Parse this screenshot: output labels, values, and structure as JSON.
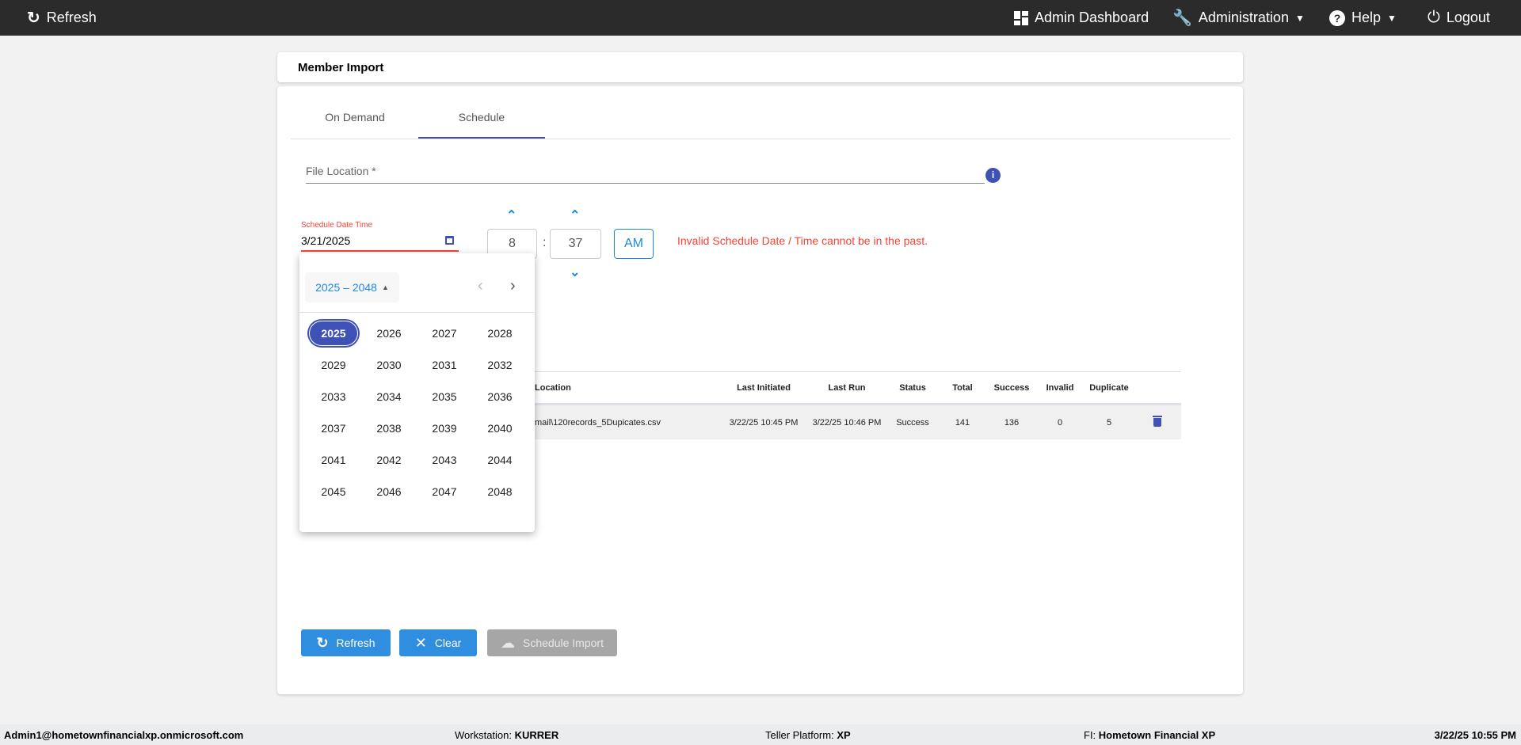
{
  "topbar": {
    "refresh": "Refresh",
    "admin_dashboard": "Admin Dashboard",
    "administration": "Administration",
    "help": "Help",
    "logout": "Logout"
  },
  "page_title": "Member Import",
  "tabs": [
    {
      "label": "On Demand",
      "active": false
    },
    {
      "label": "Schedule",
      "active": true
    }
  ],
  "form": {
    "file_location_label": "File Location *",
    "file_location_value": "",
    "schedule_label": "Schedule Date Time",
    "schedule_date": "3/21/2025",
    "hour": "8",
    "colon": ":",
    "minute": "37",
    "ampm": "AM",
    "error": "Invalid Schedule Date / Time cannot be in the past.",
    "hidden_text": "m"
  },
  "datepicker": {
    "range_label": "2025 – 2048",
    "selected": "2025",
    "years": [
      "2025",
      "2026",
      "2027",
      "2028",
      "2029",
      "2030",
      "2031",
      "2032",
      "2033",
      "2034",
      "2035",
      "2036",
      "2037",
      "2038",
      "2039",
      "2040",
      "2041",
      "2042",
      "2043",
      "2044",
      "2045",
      "2046",
      "2047",
      "2048"
    ]
  },
  "table": {
    "headers": {
      "location": "Location",
      "last_initiated": "Last Initiated",
      "last_run": "Last Run",
      "status": "Status",
      "total": "Total",
      "success": "Success",
      "invalid": "Invalid",
      "duplicate": "Duplicate"
    },
    "rows": [
      {
        "location": "mail\\120records_5Dupicates.csv",
        "last_initiated": "3/22/25 10:45 PM",
        "last_run": "3/22/25 10:46 PM",
        "status": "Success",
        "total": "141",
        "success": "136",
        "invalid": "0",
        "duplicate": "5"
      }
    ]
  },
  "buttons": {
    "refresh": "Refresh",
    "clear": "Clear",
    "schedule_import": "Schedule Import"
  },
  "footer": {
    "user": "Admin1@hometownfinancialxp.onmicrosoft.com",
    "workstation_label": "Workstation: ",
    "workstation": "KURRER",
    "platform_label": "Teller Platform: ",
    "platform": "XP",
    "fi_label": "FI: ",
    "fi": "Hometown Financial XP",
    "datetime": "3/22/25 10:55 PM"
  },
  "colors": {
    "primary": "#3f51b5",
    "button_blue": "#2f8ee0",
    "error": "#f44336",
    "disabled": "#a6a6a6"
  }
}
